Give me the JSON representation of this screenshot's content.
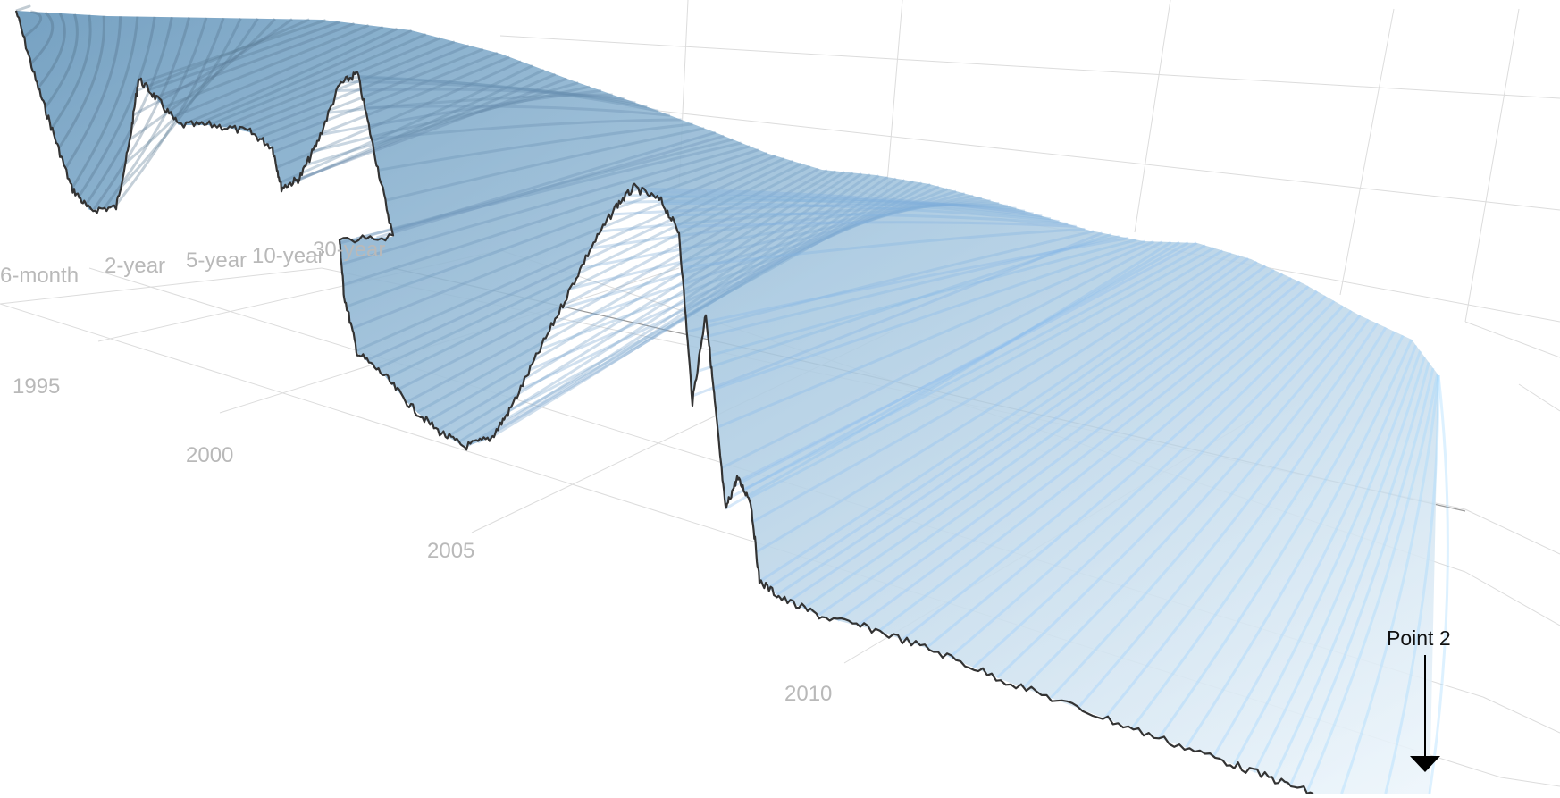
{
  "chart_data": {
    "type": "surface",
    "x_axis": {
      "tick_labels": [
        "6-month",
        "2-year",
        "5-year",
        "10-year",
        "30-year"
      ]
    },
    "y_axis": {
      "tick_labels": [
        "1995",
        "2000",
        "2005",
        "2010"
      ],
      "tick_values": [
        1995,
        2000,
        2005,
        2010
      ],
      "range": [
        1990,
        2016
      ]
    },
    "grid": true,
    "colors": {
      "surface_high": "#2f6f9f",
      "surface_mid": "#8bb6d6",
      "surface_low": "#eaf4fb",
      "short_rate_line": "#333333",
      "grid": "#dcdcdc",
      "tick_label": "#b9b9b9"
    },
    "annotations": [
      {
        "text": "Point 2",
        "arrow": "down"
      }
    ]
  }
}
